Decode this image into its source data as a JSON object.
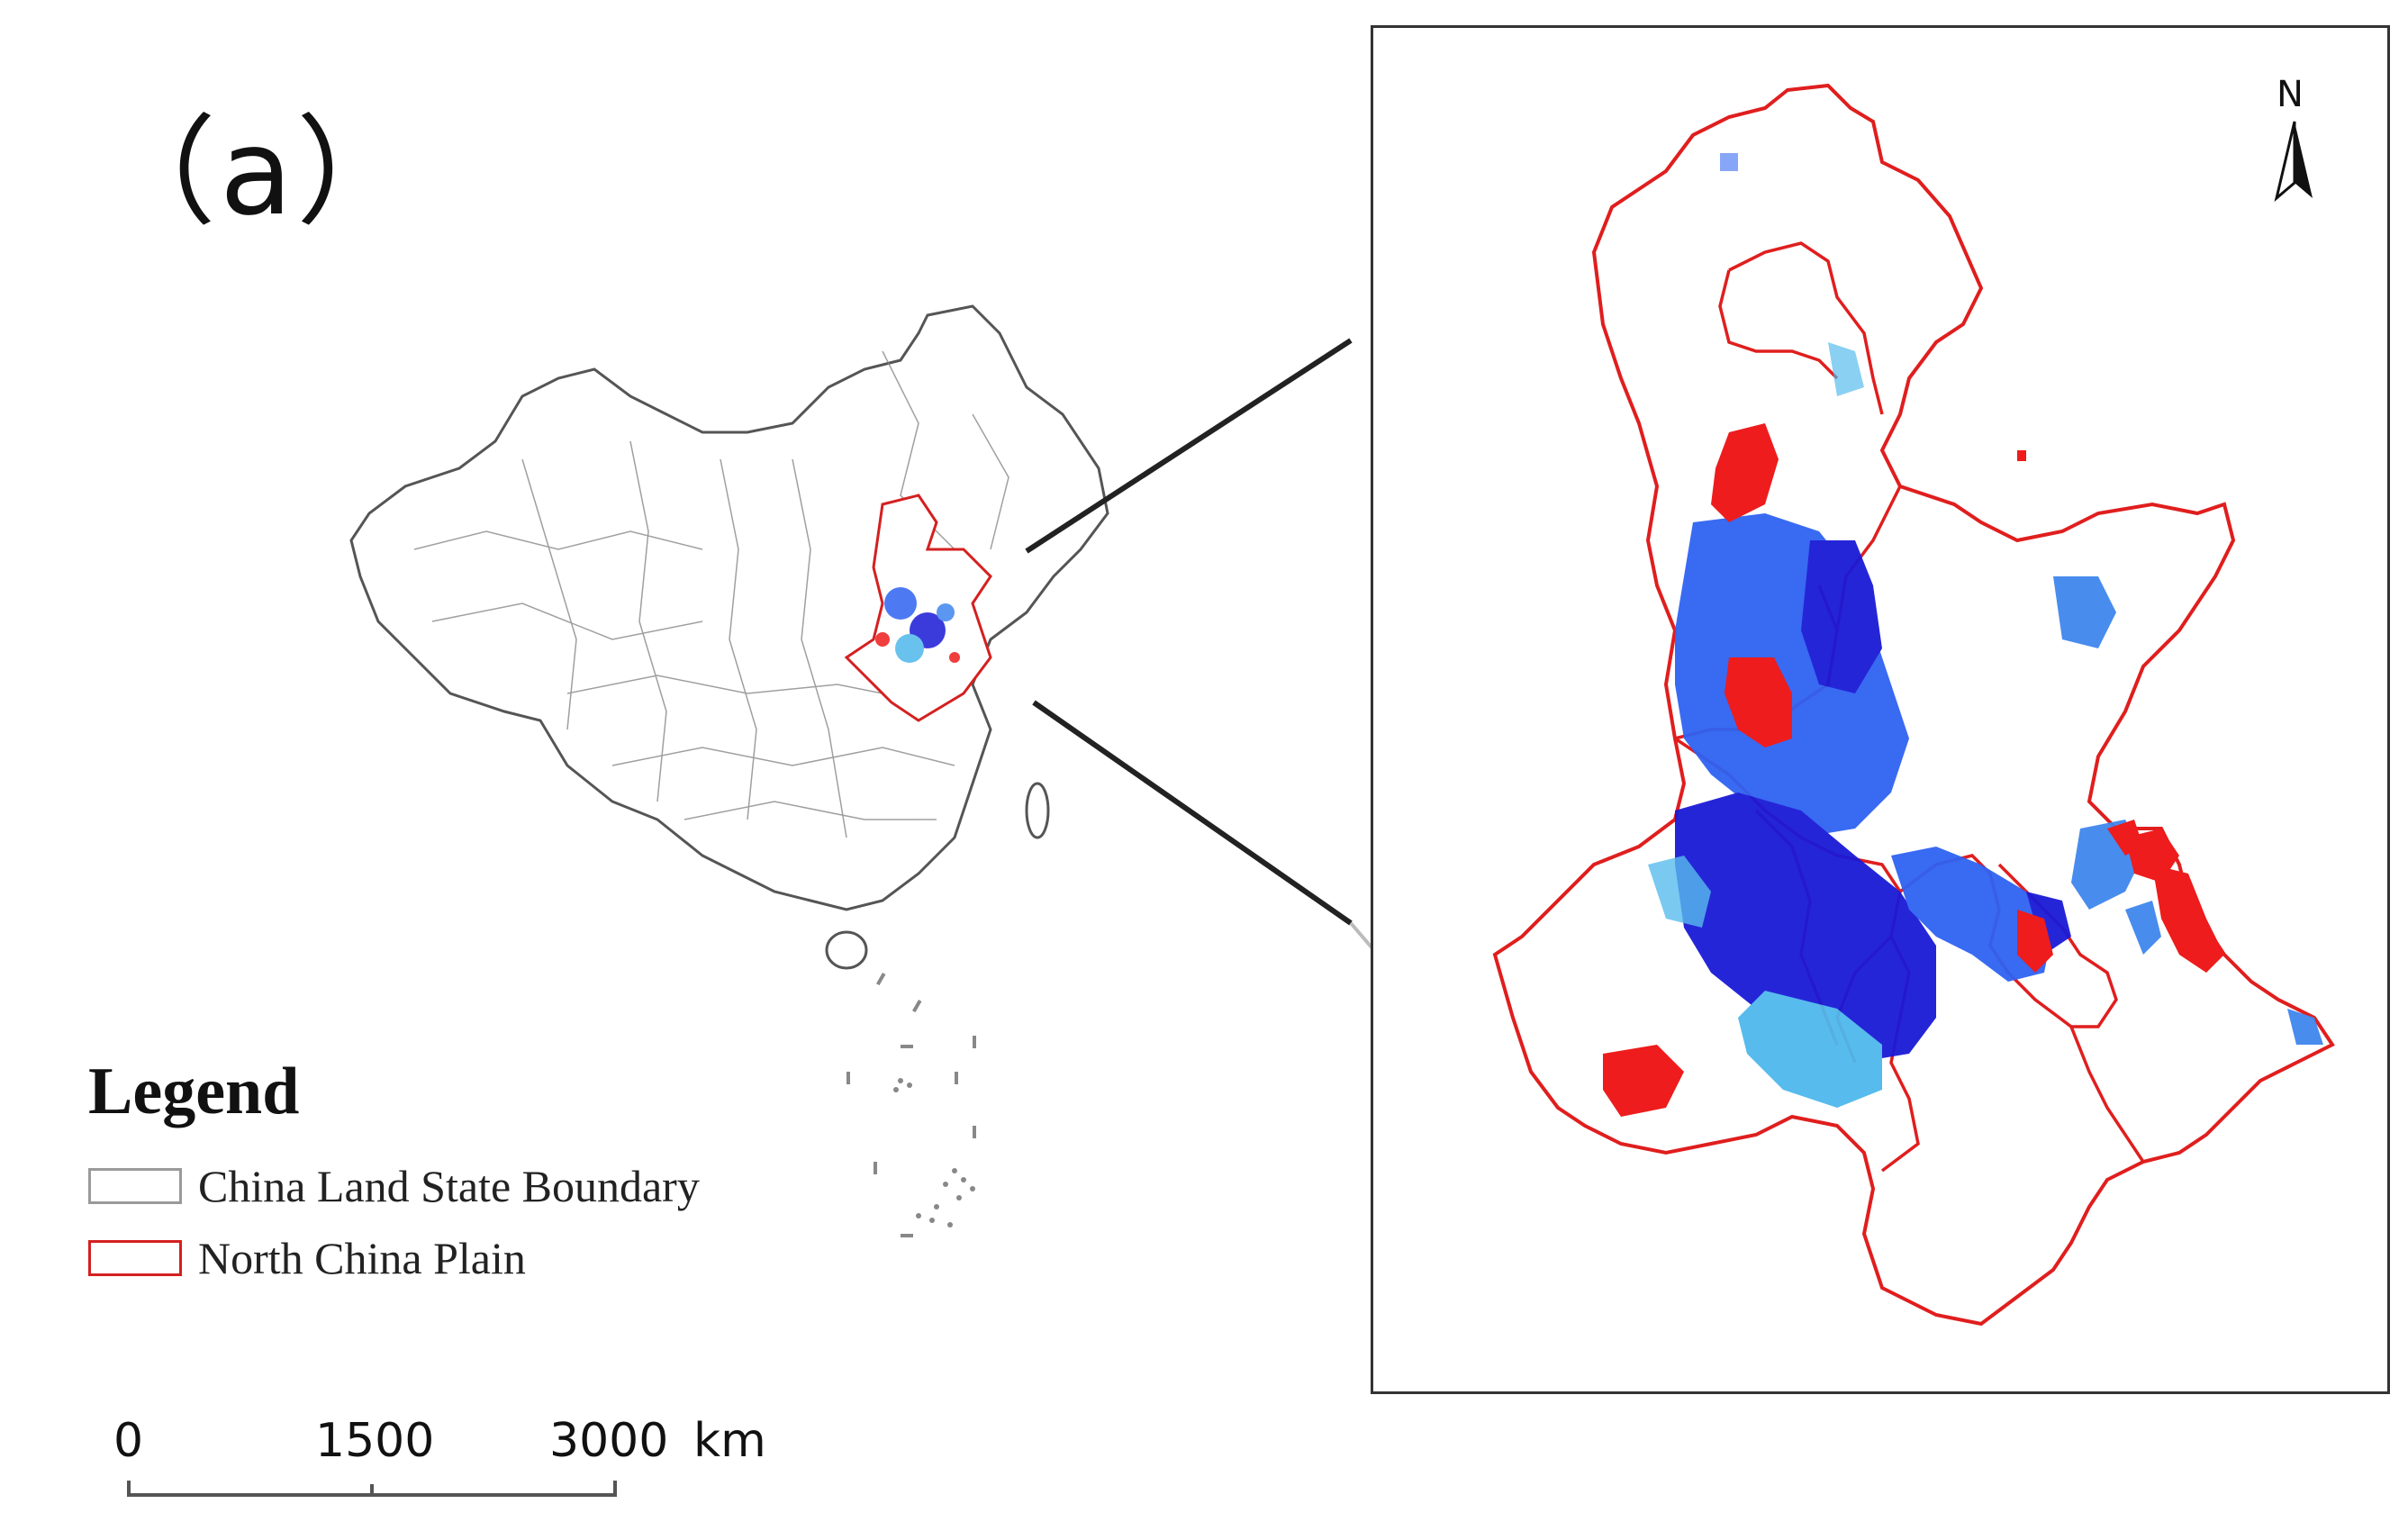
{
  "panel_label": "（a）",
  "legend": {
    "title": "Legend",
    "items": [
      {
        "label": "China Land State Boundary",
        "color": "#9a9a9a"
      },
      {
        "label": "North China Plain",
        "color": "#d42020"
      }
    ]
  },
  "north_arrow": {
    "label": "N"
  },
  "scale_bar": {
    "ticks": [
      "0",
      "1500",
      "3000"
    ],
    "unit": "km"
  },
  "colors": {
    "boundary": "#555555",
    "region_outline": "#e01e1e",
    "dark_blue": "#1a1ad6",
    "medium_blue": "#2f63f2",
    "light_blue": "#4fb8ec",
    "steel_blue": "#3f86ee",
    "red": "#ee1c1c"
  }
}
